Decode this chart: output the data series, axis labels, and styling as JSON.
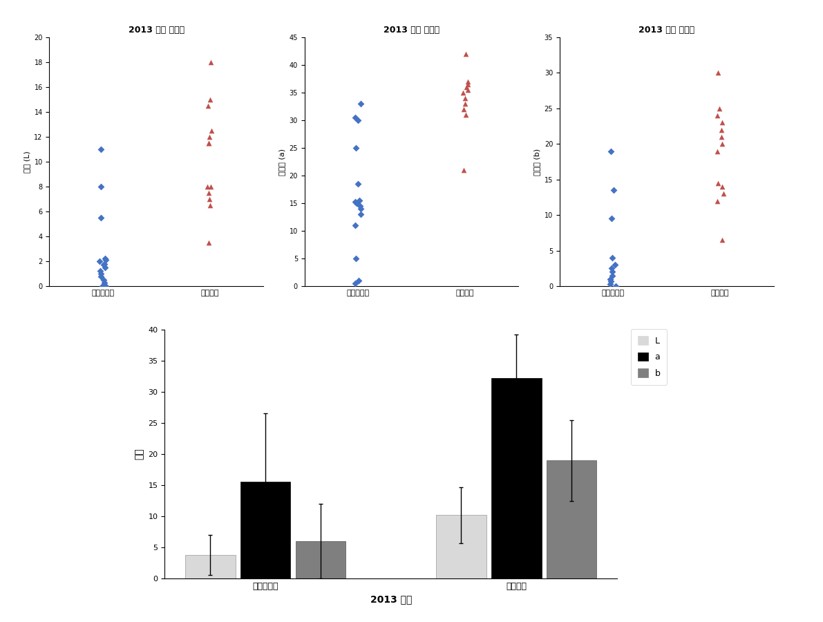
{
  "title": "2013 업체 고추장",
  "categories": [
    "찹쌀고추장",
    "밀고추장"
  ],
  "scatter_L_glutinous": [
    0,
    0,
    0.3,
    0.5,
    0.8,
    1.0,
    1.2,
    1.5,
    1.7,
    1.8,
    2.0,
    2.1,
    2.2,
    5.5,
    8.0,
    11.0
  ],
  "scatter_L_wheat": [
    3.5,
    6.5,
    7.0,
    7.5,
    8.0,
    8.0,
    11.5,
    11.5,
    12.0,
    12.5,
    14.5,
    15.0,
    18.0
  ],
  "scatter_a_glutinous": [
    0.5,
    1.0,
    5.0,
    11.0,
    13.0,
    14.0,
    14.5,
    15.0,
    15.2,
    15.5,
    18.5,
    25.0,
    30.0,
    30.5,
    33.0
  ],
  "scatter_a_wheat": [
    21.0,
    31.0,
    32.0,
    33.0,
    34.0,
    35.0,
    35.5,
    36.0,
    36.5,
    37.0,
    42.0
  ],
  "scatter_b_glutinous": [
    0.0,
    0.3,
    0.7,
    1.0,
    1.5,
    2.0,
    2.5,
    3.0,
    4.0,
    9.5,
    13.5,
    19.0
  ],
  "scatter_b_wheat": [
    6.5,
    12.0,
    13.0,
    14.0,
    14.5,
    19.0,
    20.0,
    21.0,
    22.0,
    23.0,
    24.0,
    25.0,
    30.0
  ],
  "ylim_L": [
    0,
    20
  ],
  "ylim_a": [
    0,
    45
  ],
  "ylim_b": [
    0,
    35
  ],
  "yticks_L": [
    0,
    2,
    4,
    6,
    8,
    10,
    12,
    14,
    16,
    18,
    20
  ],
  "yticks_a": [
    0,
    5,
    10,
    15,
    20,
    25,
    30,
    35,
    40,
    45
  ],
  "yticks_b": [
    0,
    5,
    10,
    15,
    20,
    25,
    30,
    35
  ],
  "ylabel_L": "명도 (L)",
  "ylabel_a": "적색도 (a)",
  "ylabel_b": "황색도 (b)",
  "bar_L_glutinous_mean": 3.8,
  "bar_L_glutinous_err": 3.2,
  "bar_a_glutinous_mean": 15.6,
  "bar_a_glutinous_err": 11.0,
  "bar_b_glutinous_mean": 6.0,
  "bar_b_glutinous_err": 6.0,
  "bar_L_wheat_mean": 10.2,
  "bar_L_wheat_err": 4.5,
  "bar_a_wheat_mean": 32.2,
  "bar_a_wheat_err": 7.0,
  "bar_b_wheat_mean": 19.0,
  "bar_b_wheat_err": 6.5,
  "bar_ylim": [
    0,
    40
  ],
  "bar_yticks": [
    0,
    5,
    10,
    15,
    20,
    25,
    30,
    35,
    40
  ],
  "bar_ylabel": "색도",
  "bar_xlabel": "2013 업체",
  "color_blue": "#4472C4",
  "color_red": "#C0504D",
  "color_L": "#D9D9D9",
  "color_a": "#000000",
  "color_b": "#7F7F7F",
  "bar_group_labels": [
    "찹쌀고추장",
    "밀고추장"
  ]
}
